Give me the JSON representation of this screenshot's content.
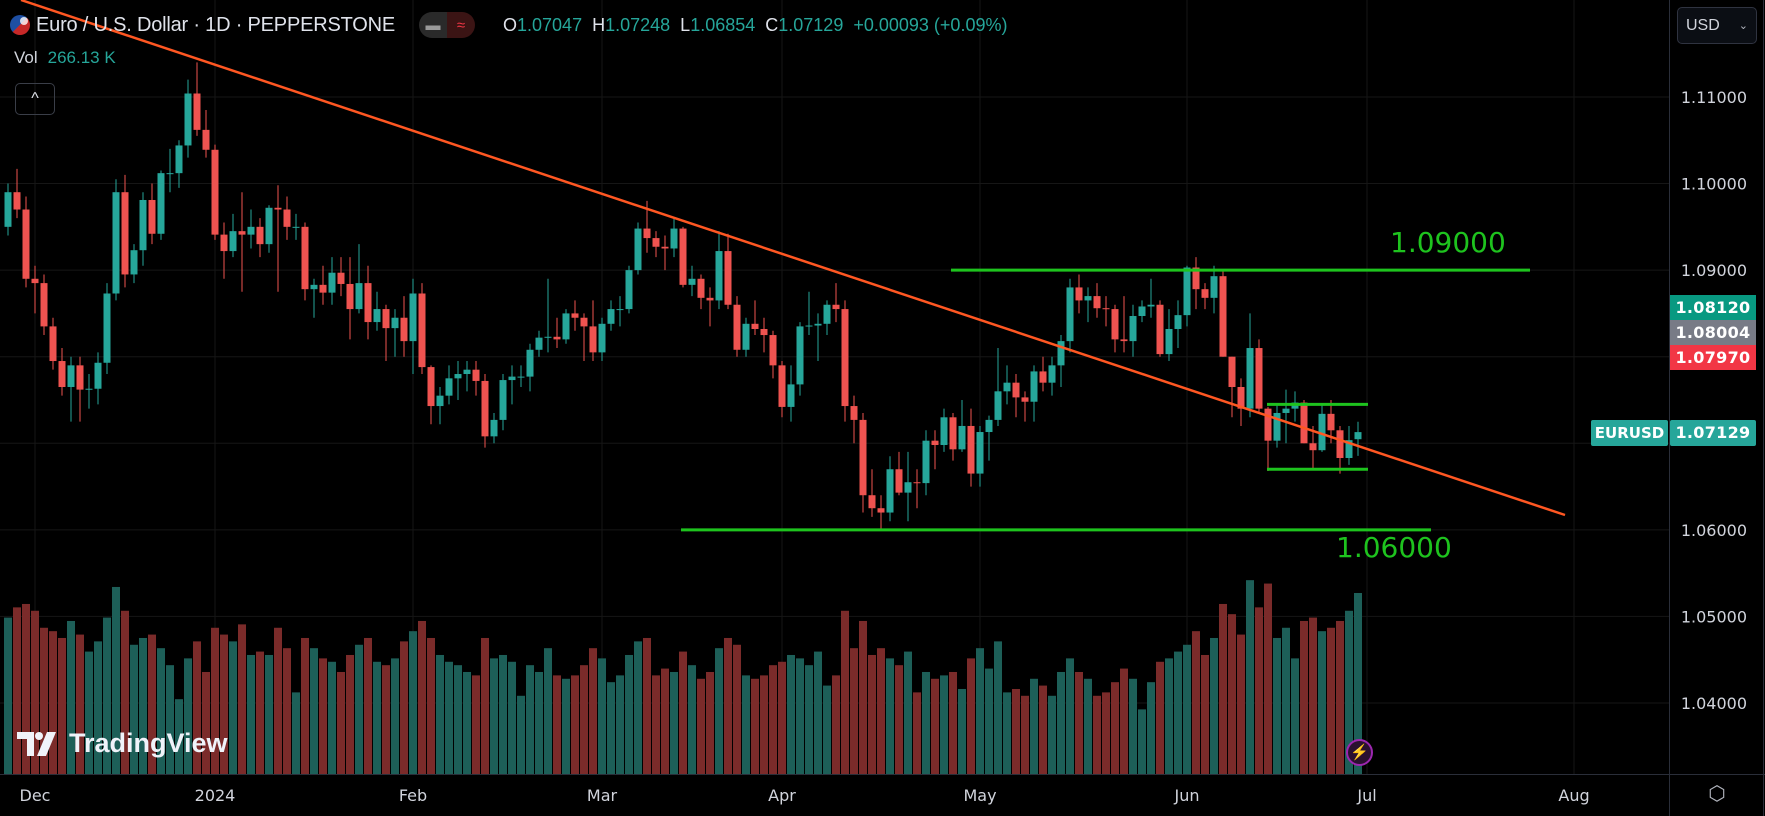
{
  "header": {
    "title": "Euro / U.S. Dollar · 1D · PEPPERSTONE",
    "ohlc": {
      "o_label": "O",
      "o": "1.07047",
      "h_label": "H",
      "h": "1.07248",
      "l_label": "L",
      "l": "1.06854",
      "c_label": "C",
      "c": "1.07129",
      "change": "+0.00093 (+0.09%)"
    },
    "vol_label": "Vol",
    "vol_value": "266.13 K",
    "collapse_icon": "^"
  },
  "currency_button": {
    "label": "USD"
  },
  "price_axis": {
    "ticks": [
      "1.11000",
      "1.10000",
      "1.09000",
      "1.06000",
      "1.05000",
      "1.04000"
    ],
    "badges": [
      {
        "value": "1.08120",
        "color": "#089981"
      },
      {
        "value": "1.08004",
        "color": "#787b86"
      },
      {
        "value": "1.07970",
        "color": "#f23645"
      }
    ],
    "symbol_label": "EURUSD",
    "last_price": "1.07129"
  },
  "time_axis": {
    "labels": [
      "Dec",
      "2024",
      "Feb",
      "Mar",
      "Apr",
      "May",
      "Jun",
      "Jul",
      "Aug"
    ]
  },
  "annotations": {
    "level_high": "1.09000",
    "level_low": "1.06000"
  },
  "branding": {
    "logo_text": "TradingView"
  },
  "colors": {
    "up": "#26a69a",
    "down": "#ef5350",
    "trendline": "#ff5722",
    "levels": "#1ec31e",
    "background": "#000000"
  },
  "chart_data": {
    "type": "candlestick",
    "symbol": "EURUSD",
    "interval": "1D",
    "ylim": [
      1.0318,
      1.1212
    ],
    "grid": true,
    "columns": [
      "open",
      "high",
      "low",
      "close",
      "volume_k"
    ],
    "ohlcv": [
      [
        1.095,
        1.1,
        1.094,
        1.099,
        230
      ],
      [
        1.099,
        1.1017,
        1.096,
        1.097,
        245
      ],
      [
        1.097,
        1.0985,
        1.088,
        1.089,
        250
      ],
      [
        1.089,
        1.0905,
        1.085,
        1.0885,
        240
      ],
      [
        1.0885,
        1.0895,
        1.0825,
        1.0835,
        215
      ],
      [
        1.0835,
        1.0845,
        1.0785,
        1.0795,
        210
      ],
      [
        1.0795,
        1.081,
        1.0755,
        1.0765,
        200
      ],
      [
        1.0765,
        1.08,
        1.0725,
        1.079,
        225
      ],
      [
        1.079,
        1.08,
        1.0725,
        1.0762,
        205
      ],
      [
        1.0762,
        1.078,
        1.074,
        1.0763,
        180
      ],
      [
        1.0763,
        1.0805,
        1.0745,
        1.0793,
        195
      ],
      [
        1.0793,
        1.0885,
        1.078,
        1.0873,
        230
      ],
      [
        1.0873,
        1.1005,
        1.0865,
        1.099,
        275
      ],
      [
        1.099,
        1.101,
        1.088,
        1.0895,
        240
      ],
      [
        1.0895,
        1.093,
        1.0885,
        1.0923,
        190
      ],
      [
        1.0923,
        1.099,
        1.0905,
        1.0981,
        200
      ],
      [
        1.0981,
        1.1,
        1.093,
        1.0942,
        205
      ],
      [
        1.0942,
        1.1015,
        1.0935,
        1.1012,
        185
      ],
      [
        1.1012,
        1.104,
        1.099,
        1.1012,
        160
      ],
      [
        1.1012,
        1.105,
        1.0995,
        1.1044,
        110
      ],
      [
        1.1044,
        1.112,
        1.103,
        1.1104,
        170
      ],
      [
        1.1104,
        1.114,
        1.1055,
        1.1062,
        195
      ],
      [
        1.1062,
        1.1085,
        1.103,
        1.1039,
        150
      ],
      [
        1.1039,
        1.1045,
        1.0935,
        1.0941,
        215
      ],
      [
        1.0941,
        1.0955,
        1.089,
        1.0922,
        205
      ],
      [
        1.0922,
        1.0965,
        1.0915,
        1.0945,
        195
      ],
      [
        1.0945,
        1.099,
        1.0875,
        1.0941,
        220
      ],
      [
        1.0941,
        1.097,
        1.0925,
        1.095,
        175
      ],
      [
        1.095,
        1.096,
        1.0915,
        1.093,
        180
      ],
      [
        1.093,
        1.0975,
        1.092,
        1.0972,
        175
      ],
      [
        1.0972,
        1.0998,
        1.0875,
        1.097,
        215
      ],
      [
        1.097,
        1.0985,
        1.0935,
        1.095,
        185
      ],
      [
        1.095,
        1.0965,
        1.0935,
        1.095,
        120
      ],
      [
        1.095,
        1.0955,
        1.0865,
        1.0878,
        200
      ],
      [
        1.0878,
        1.089,
        1.0845,
        1.0883,
        185
      ],
      [
        1.0883,
        1.0905,
        1.086,
        1.0874,
        170
      ],
      [
        1.0874,
        1.0915,
        1.086,
        1.0897,
        165
      ],
      [
        1.0897,
        1.0915,
        1.087,
        1.0884,
        150
      ],
      [
        1.0884,
        1.0915,
        1.082,
        1.0855,
        175
      ],
      [
        1.0855,
        1.093,
        1.085,
        1.0885,
        190
      ],
      [
        1.0885,
        1.0905,
        1.082,
        1.084,
        200
      ],
      [
        1.084,
        1.0875,
        1.083,
        1.0855,
        165
      ],
      [
        1.0855,
        1.086,
        1.0795,
        1.0833,
        160
      ],
      [
        1.0833,
        1.0855,
        1.08,
        1.0845,
        170
      ],
      [
        1.0845,
        1.087,
        1.08,
        1.0818,
        195
      ],
      [
        1.0818,
        1.089,
        1.078,
        1.0873,
        210
      ],
      [
        1.0873,
        1.0885,
        1.078,
        1.0788,
        225
      ],
      [
        1.0788,
        1.079,
        1.0722,
        1.0743,
        200
      ],
      [
        1.0743,
        1.0765,
        1.0722,
        1.0755,
        175
      ],
      [
        1.0755,
        1.079,
        1.0745,
        1.0775,
        165
      ],
      [
        1.0775,
        1.0795,
        1.075,
        1.078,
        160
      ],
      [
        1.078,
        1.0795,
        1.076,
        1.0785,
        150
      ],
      [
        1.0785,
        1.0795,
        1.0755,
        1.0772,
        145
      ],
      [
        1.0772,
        1.078,
        1.0695,
        1.0708,
        200
      ],
      [
        1.0708,
        1.0735,
        1.07,
        1.0727,
        170
      ],
      [
        1.0727,
        1.078,
        1.0715,
        1.0773,
        175
      ],
      [
        1.0773,
        1.079,
        1.0745,
        1.0777,
        165
      ],
      [
        1.0777,
        1.079,
        1.0765,
        1.0777,
        115
      ],
      [
        1.0777,
        1.0815,
        1.076,
        1.0808,
        160
      ],
      [
        1.0808,
        1.083,
        1.08,
        1.0822,
        150
      ],
      [
        1.0822,
        1.089,
        1.0805,
        1.0823,
        185
      ],
      [
        1.0823,
        1.0845,
        1.081,
        1.082,
        145
      ],
      [
        1.082,
        1.0855,
        1.0815,
        1.085,
        140
      ],
      [
        1.085,
        1.0865,
        1.083,
        1.0845,
        145
      ],
      [
        1.0845,
        1.085,
        1.0795,
        1.0835,
        160
      ],
      [
        1.0835,
        1.0865,
        1.0795,
        1.0805,
        185
      ],
      [
        1.0805,
        1.0845,
        1.0795,
        1.0838,
        170
      ],
      [
        1.0838,
        1.0865,
        1.083,
        1.0855,
        135
      ],
      [
        1.0855,
        1.087,
        1.0835,
        1.0855,
        145
      ],
      [
        1.0855,
        1.0905,
        1.085,
        1.09,
        175
      ],
      [
        1.09,
        1.0955,
        1.0895,
        1.0948,
        195
      ],
      [
        1.0948,
        1.098,
        1.092,
        1.0937,
        200
      ],
      [
        1.0937,
        1.0945,
        1.0915,
        1.0927,
        145
      ],
      [
        1.0927,
        1.094,
        1.09,
        1.0925,
        155
      ],
      [
        1.0925,
        1.096,
        1.0915,
        1.0948,
        150
      ],
      [
        1.0948,
        1.095,
        1.088,
        1.0883,
        180
      ],
      [
        1.0883,
        1.0905,
        1.087,
        1.089,
        160
      ],
      [
        1.089,
        1.0895,
        1.0855,
        1.0868,
        140
      ],
      [
        1.0868,
        1.088,
        1.0835,
        1.0865,
        150
      ],
      [
        1.0865,
        1.0945,
        1.0855,
        1.0922,
        185
      ],
      [
        1.0922,
        1.0942,
        1.0855,
        1.086,
        200
      ],
      [
        1.086,
        1.087,
        1.08,
        1.0808,
        190
      ],
      [
        1.0808,
        1.0845,
        1.08,
        1.0838,
        145
      ],
      [
        1.0838,
        1.0865,
        1.0825,
        1.0832,
        140
      ],
      [
        1.0832,
        1.0845,
        1.0805,
        1.0825,
        145
      ],
      [
        1.0825,
        1.083,
        1.0775,
        1.079,
        160
      ],
      [
        1.079,
        1.0795,
        1.073,
        1.0742,
        165
      ],
      [
        1.0742,
        1.079,
        1.0725,
        1.0768,
        175
      ],
      [
        1.0768,
        1.084,
        1.0755,
        1.0835,
        170
      ],
      [
        1.0835,
        1.0875,
        1.0825,
        1.0836,
        160
      ],
      [
        1.0836,
        1.085,
        1.0795,
        1.0838,
        180
      ],
      [
        1.0838,
        1.0865,
        1.0825,
        1.086,
        130
      ],
      [
        1.086,
        1.0885,
        1.084,
        1.0855,
        145
      ],
      [
        1.0855,
        1.0865,
        1.0725,
        1.0743,
        240
      ],
      [
        1.0743,
        1.0755,
        1.07,
        1.0727,
        185
      ],
      [
        1.0727,
        1.0735,
        1.062,
        1.064,
        225
      ],
      [
        1.064,
        1.067,
        1.0615,
        1.0625,
        175
      ],
      [
        1.0625,
        1.064,
        1.0601,
        1.062,
        185
      ],
      [
        1.062,
        1.0685,
        1.061,
        1.067,
        170
      ],
      [
        1.067,
        1.069,
        1.064,
        1.0643,
        160
      ],
      [
        1.0643,
        1.069,
        1.061,
        1.0655,
        180
      ],
      [
        1.0655,
        1.067,
        1.0625,
        1.0654,
        120
      ],
      [
        1.0654,
        1.0715,
        1.064,
        1.0703,
        150
      ],
      [
        1.0703,
        1.0715,
        1.067,
        1.0698,
        140
      ],
      [
        1.0698,
        1.074,
        1.069,
        1.073,
        145
      ],
      [
        1.073,
        1.0735,
        1.068,
        1.0693,
        150
      ],
      [
        1.0693,
        1.075,
        1.069,
        1.072,
        125
      ],
      [
        1.072,
        1.074,
        1.065,
        1.0665,
        170
      ],
      [
        1.0665,
        1.072,
        1.065,
        1.0713,
        185
      ],
      [
        1.0713,
        1.0732,
        1.068,
        1.0727,
        155
      ],
      [
        1.0727,
        1.081,
        1.072,
        1.076,
        195
      ],
      [
        1.076,
        1.079,
        1.0745,
        1.077,
        120
      ],
      [
        1.077,
        1.078,
        1.073,
        1.0753,
        125
      ],
      [
        1.0753,
        1.076,
        1.0725,
        1.0748,
        115
      ],
      [
        1.0748,
        1.079,
        1.0725,
        1.0783,
        140
      ],
      [
        1.0783,
        1.08,
        1.076,
        1.077,
        130
      ],
      [
        1.077,
        1.08,
        1.0755,
        1.079,
        115
      ],
      [
        1.079,
        1.0825,
        1.0765,
        1.0818,
        150
      ],
      [
        1.0818,
        1.089,
        1.0805,
        1.088,
        170
      ],
      [
        1.088,
        1.0895,
        1.085,
        1.0865,
        150
      ],
      [
        1.0865,
        1.088,
        1.084,
        1.087,
        140
      ],
      [
        1.087,
        1.0885,
        1.0845,
        1.0856,
        115
      ],
      [
        1.0856,
        1.087,
        1.0835,
        1.0855,
        120
      ],
      [
        1.0855,
        1.086,
        1.0805,
        1.082,
        135
      ],
      [
        1.082,
        1.087,
        1.0805,
        1.0818,
        155
      ],
      [
        1.0818,
        1.086,
        1.08,
        1.0847,
        140
      ],
      [
        1.0847,
        1.0865,
        1.084,
        1.0858,
        95
      ],
      [
        1.0858,
        1.089,
        1.0845,
        1.086,
        135
      ],
      [
        1.086,
        1.0865,
        1.08,
        1.0803,
        165
      ],
      [
        1.0803,
        1.0855,
        1.0795,
        1.0832,
        170
      ],
      [
        1.0832,
        1.0865,
        1.081,
        1.0848,
        180
      ],
      [
        1.0848,
        1.0905,
        1.0835,
        1.0903,
        190
      ],
      [
        1.0903,
        1.0915,
        1.0855,
        1.0878,
        210
      ],
      [
        1.0878,
        1.0885,
        1.0855,
        1.0868,
        175
      ],
      [
        1.0868,
        1.0905,
        1.085,
        1.0893,
        200
      ],
      [
        1.0893,
        1.09,
        1.08,
        1.08,
        250
      ],
      [
        1.08,
        1.08,
        1.073,
        1.0765,
        235
      ],
      [
        1.0765,
        1.0775,
        1.072,
        1.074,
        205
      ],
      [
        1.074,
        1.085,
        1.073,
        1.081,
        285
      ],
      [
        1.081,
        1.082,
        1.0735,
        1.074,
        245
      ],
      [
        1.074,
        1.0742,
        1.0668,
        1.0703,
        280
      ],
      [
        1.0703,
        1.0745,
        1.0695,
        1.0735,
        200
      ],
      [
        1.0735,
        1.0762,
        1.07,
        1.074,
        215
      ],
      [
        1.074,
        1.076,
        1.0725,
        1.0747,
        170
      ],
      [
        1.0747,
        1.075,
        1.07,
        1.07,
        225
      ],
      [
        1.07,
        1.072,
        1.067,
        1.0692,
        230
      ],
      [
        1.0692,
        1.0745,
        1.069,
        1.0734,
        210
      ],
      [
        1.0734,
        1.075,
        1.07,
        1.0715,
        215
      ],
      [
        1.0715,
        1.072,
        1.0665,
        1.0683,
        225
      ],
      [
        1.0683,
        1.072,
        1.0675,
        1.07036,
        240
      ],
      [
        1.07047,
        1.07248,
        1.06854,
        1.07129,
        266.13
      ]
    ],
    "drawings": {
      "horizontal_levels": [
        1.09,
        1.06
      ],
      "range_box": {
        "top": 1.0745,
        "bottom": 1.067
      },
      "trendline": "descending"
    }
  }
}
